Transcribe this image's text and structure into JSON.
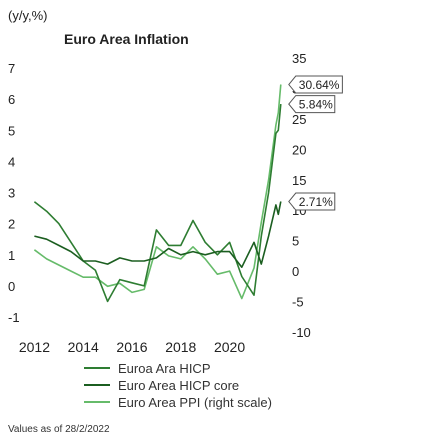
{
  "chart_data": {
    "type": "line",
    "title": "Euro Area Inflation",
    "ylabel_left": "(y/y,%)",
    "ylim_left": [
      -1,
      7
    ],
    "ylim_right": [
      -10,
      35
    ],
    "yticks_left": [
      "7",
      "6",
      "5",
      "4",
      "3",
      "2",
      "1",
      "0",
      "-1"
    ],
    "yticks_right": [
      "35",
      "30",
      "25",
      "20",
      "15",
      "10",
      "5",
      "0",
      "-5",
      "-10"
    ],
    "xlim": [
      2011.9,
      2022.15
    ],
    "xticks": [
      "2012",
      "2014",
      "2016",
      "2018",
      "2020"
    ],
    "legend_position": "bottom",
    "note": "Values as of 28/2/2022",
    "series": [
      {
        "name": "Euroa Ara HICP",
        "axis": "left",
        "color": "#2e7d32",
        "x": [
          2012.0,
          2012.5,
          2013.0,
          2013.5,
          2014.0,
          2014.5,
          2015.0,
          2015.5,
          2016.0,
          2016.5,
          2017.0,
          2017.5,
          2018.0,
          2018.5,
          2019.0,
          2019.5,
          2020.0,
          2020.5,
          2021.0,
          2021.3,
          2021.6,
          2021.9,
          2022.0,
          2022.1
        ],
        "values": [
          2.7,
          2.4,
          2.0,
          1.4,
          0.8,
          0.5,
          -0.5,
          0.2,
          0.1,
          0.0,
          1.8,
          1.3,
          1.3,
          2.1,
          1.4,
          1.0,
          1.4,
          0.3,
          -0.3,
          1.6,
          3.0,
          4.9,
          5.0,
          5.84
        ],
        "labels": [
          {
            "x": 2022.1,
            "y": 5.84,
            "text": "5.84%"
          }
        ]
      },
      {
        "name": "Euro Area HICP core",
        "axis": "left",
        "color": "#1b5e20",
        "x": [
          2012.0,
          2012.5,
          2013.0,
          2013.5,
          2014.0,
          2014.5,
          2015.0,
          2015.5,
          2016.0,
          2016.5,
          2017.0,
          2017.5,
          2018.0,
          2018.5,
          2019.0,
          2019.5,
          2020.0,
          2020.5,
          2021.0,
          2021.3,
          2021.6,
          2021.9,
          2022.0,
          2022.1
        ],
        "values": [
          1.6,
          1.5,
          1.3,
          1.1,
          0.8,
          0.8,
          0.7,
          0.9,
          0.8,
          0.8,
          0.9,
          1.2,
          1.0,
          1.1,
          1.0,
          1.1,
          1.1,
          0.6,
          1.4,
          0.7,
          1.6,
          2.6,
          2.3,
          2.71
        ],
        "labels": [
          {
            "x": 2022.1,
            "y": 2.71,
            "text": "2.71%"
          }
        ]
      },
      {
        "name": "Euro Area PPI (right scale)",
        "axis": "right",
        "color": "#66bb6a",
        "x": [
          2012.0,
          2012.5,
          2013.0,
          2013.5,
          2014.0,
          2014.5,
          2015.0,
          2015.5,
          2016.0,
          2016.5,
          2017.0,
          2017.5,
          2018.0,
          2018.5,
          2019.0,
          2019.5,
          2020.0,
          2020.5,
          2021.0,
          2021.3,
          2021.6,
          2021.9,
          2022.0,
          2022.1
        ],
        "values": [
          3.5,
          2.0,
          1.0,
          0.0,
          -1.0,
          -1.0,
          -2.5,
          -2.0,
          -3.5,
          -3.0,
          4.0,
          2.5,
          2.0,
          4.0,
          2.0,
          -0.5,
          0.0,
          -4.5,
          0.5,
          8.0,
          15.0,
          24.0,
          26.0,
          30.64
        ],
        "labels": [
          {
            "x": 2022.1,
            "y": 30.64,
            "text": "30.64%"
          }
        ]
      }
    ]
  }
}
